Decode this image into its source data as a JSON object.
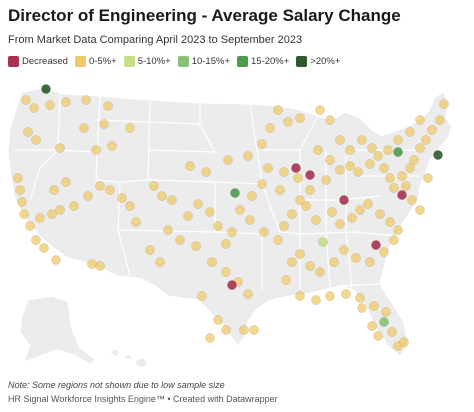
{
  "title": "Director of Engineering - Average Salary Change",
  "subtitle": "From Market Data Comparing April 2023 to September 2023",
  "legend": [
    {
      "label": "Decreased",
      "color": "#a8324f"
    },
    {
      "label": "0-5%+",
      "color": "#f0c96a"
    },
    {
      "label": "5-10%+",
      "color": "#c4df8a"
    },
    {
      "label": "10-15%+",
      "color": "#86c276"
    },
    {
      "label": "15-20%+",
      "color": "#4f9a4c"
    },
    {
      "label": ">20%+",
      "color": "#2c5a2a"
    }
  ],
  "note": "Note: Some regions not shown due to low sample size",
  "credit": "HR Signal Workforce Insights Engine™ • Created with Datawrapper",
  "chart_data": {
    "type": "scatter",
    "basemap": "usa-states",
    "dots_by_category": {
      "Decreased": 6,
      "0-5%+": 150,
      "5-10%+": 1,
      "10-15%+": 1,
      "15-20%+": 2,
      ">20%+": 2
    }
  }
}
